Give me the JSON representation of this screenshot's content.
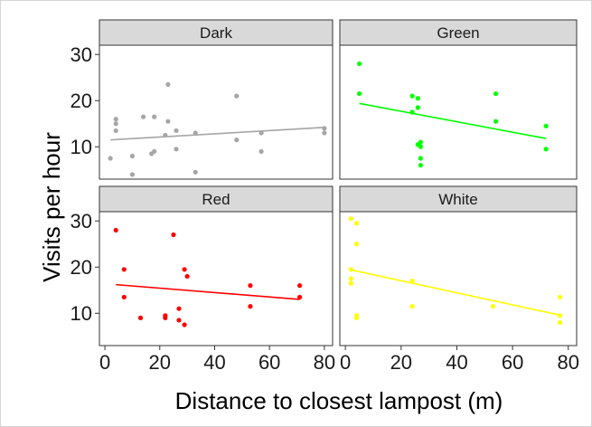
{
  "chart_data": {
    "type": "scatter",
    "xlabel": "Distance to closest lampost (m)",
    "ylabel": "Visits per hour",
    "xlim": [
      -2,
      83
    ],
    "ylim": [
      3,
      32
    ],
    "x_ticks": [
      0,
      20,
      40,
      60,
      80
    ],
    "y_ticks": [
      10,
      20,
      30
    ],
    "grid": false,
    "layout": "2x2 facets, shared axes",
    "panels": [
      {
        "name": "Dark",
        "color": "#a6a6a6",
        "points": [
          [
            2,
            7.5
          ],
          [
            4,
            13.5
          ],
          [
            4,
            15
          ],
          [
            4,
            16
          ],
          [
            10,
            4
          ],
          [
            10,
            8
          ],
          [
            14,
            16.5
          ],
          [
            17,
            8.5
          ],
          [
            18,
            16.5
          ],
          [
            18,
            9
          ],
          [
            22,
            12.5
          ],
          [
            23,
            15.5
          ],
          [
            23,
            23.5
          ],
          [
            26,
            9.5
          ],
          [
            26,
            13.5
          ],
          [
            33,
            13
          ],
          [
            33,
            4.5
          ],
          [
            48,
            21
          ],
          [
            48,
            11.5
          ],
          [
            57,
            13
          ],
          [
            57,
            9
          ],
          [
            80,
            14
          ],
          [
            80,
            13
          ]
        ],
        "fit": [
          [
            2,
            11.5
          ],
          [
            80,
            14.2
          ]
        ]
      },
      {
        "name": "Green",
        "color": "#00ff00",
        "points": [
          [
            5,
            28
          ],
          [
            5,
            21.5
          ],
          [
            24,
            21
          ],
          [
            24,
            17.5
          ],
          [
            26,
            20.5
          ],
          [
            26,
            18.5
          ],
          [
            26,
            10.5
          ],
          [
            27,
            11
          ],
          [
            27,
            10
          ],
          [
            27,
            7.5
          ],
          [
            27,
            6
          ],
          [
            54,
            21.5
          ],
          [
            54,
            15.5
          ],
          [
            72,
            14.5
          ],
          [
            72,
            9.5
          ]
        ],
        "fit": [
          [
            5,
            19.4
          ],
          [
            72,
            11.8
          ]
        ]
      },
      {
        "name": "Red",
        "color": "#ff0000",
        "points": [
          [
            4,
            28
          ],
          [
            7,
            19.5
          ],
          [
            7,
            13.5
          ],
          [
            13,
            9
          ],
          [
            22,
            9.5
          ],
          [
            22,
            9
          ],
          [
            25,
            27
          ],
          [
            27,
            11
          ],
          [
            27,
            8.5
          ],
          [
            29,
            7.5
          ],
          [
            29,
            19.5
          ],
          [
            30,
            18
          ],
          [
            53,
            16
          ],
          [
            53,
            11.5
          ],
          [
            71,
            16
          ],
          [
            71,
            13.5
          ]
        ],
        "fit": [
          [
            4,
            16.2
          ],
          [
            71,
            13
          ]
        ]
      },
      {
        "name": "White",
        "color": "#ffff00",
        "points": [
          [
            2,
            30.5
          ],
          [
            2,
            19.5
          ],
          [
            2,
            17.5
          ],
          [
            2,
            16.5
          ],
          [
            4,
            29.5
          ],
          [
            4,
            25
          ],
          [
            4,
            9.5
          ],
          [
            4,
            9
          ],
          [
            24,
            17
          ],
          [
            24,
            11.5
          ],
          [
            53,
            11.5
          ],
          [
            77,
            13.5
          ],
          [
            77,
            9.5
          ],
          [
            77,
            8
          ]
        ],
        "fit": [
          [
            2,
            19.4
          ],
          [
            77,
            9.6
          ]
        ]
      }
    ]
  }
}
